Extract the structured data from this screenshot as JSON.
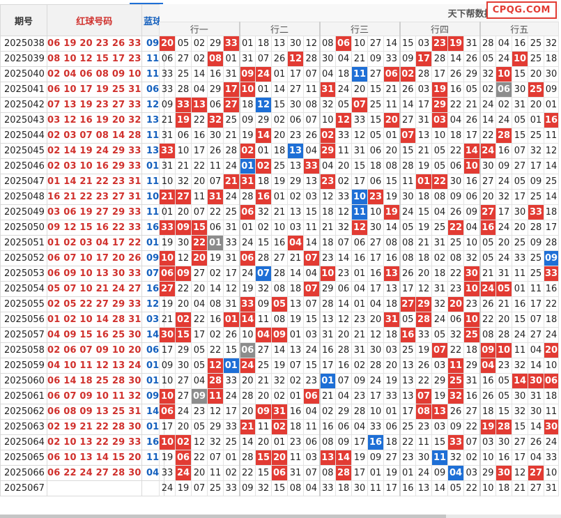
{
  "header": {
    "issue_label": "期号",
    "red_label": "红球号码",
    "blue_label": "蓝球",
    "title": "天下帮数据总表二(行数据)",
    "logo": "CPQG.COM",
    "groups": [
      "行一",
      "行二",
      "行三",
      "行四",
      "行五"
    ]
  },
  "rows": [
    {
      "issue": "2025038",
      "red": "06 19 20 23 26 33",
      "blue": "09",
      "cells": [
        "20",
        "05",
        "02",
        "29",
        "33",
        "01",
        "18",
        "13",
        "30",
        "12",
        "08",
        "06",
        "10",
        "27",
        "14",
        "15",
        "03",
        "23",
        "19",
        "31",
        "28",
        "04",
        "16",
        "25",
        "32"
      ],
      "marks": {
        "0": "r",
        "4": "r",
        "11": "r",
        "17": "r",
        "18": "r"
      }
    },
    {
      "issue": "2025039",
      "red": "08 10 12 15 17 23",
      "blue": "11",
      "cells": [
        "06",
        "27",
        "02",
        "08",
        "01",
        "31",
        "07",
        "26",
        "12",
        "28",
        "30",
        "04",
        "21",
        "09",
        "33",
        "09",
        "17",
        "28",
        "14",
        "26",
        "05",
        "24",
        "10",
        "25",
        "18"
      ],
      "marks": {
        "3": "r",
        "8": "r",
        "16": "r",
        "22": "r"
      }
    },
    {
      "issue": "2025040",
      "red": "02 04 06 08 09 10",
      "blue": "11",
      "cells": [
        "33",
        "25",
        "14",
        "16",
        "31",
        "09",
        "24",
        "01",
        "17",
        "07",
        "04",
        "18",
        "11",
        "27",
        "06",
        "02",
        "28",
        "17",
        "26",
        "29",
        "32",
        "10",
        "15",
        "20",
        "30"
      ],
      "marks": {
        "5": "r",
        "6": "r",
        "12": "b",
        "14": "r",
        "15": "r",
        "21": "r"
      }
    },
    {
      "issue": "2025041",
      "red": "06 10 17 19 25 31",
      "blue": "06",
      "cells": [
        "33",
        "28",
        "04",
        "29",
        "17",
        "10",
        "01",
        "14",
        "27",
        "11",
        "31",
        "24",
        "20",
        "15",
        "21",
        "26",
        "03",
        "19",
        "16",
        "05",
        "02",
        "06",
        "30",
        "25",
        "09"
      ],
      "marks": {
        "4": "r",
        "5": "r",
        "10": "r",
        "17": "r",
        "21": "g",
        "23": "r"
      }
    },
    {
      "issue": "2025042",
      "red": "07 13 19 23 27 33",
      "blue": "12",
      "cells": [
        "09",
        "33",
        "13",
        "06",
        "27",
        "18",
        "12",
        "15",
        "30",
        "08",
        "32",
        "05",
        "07",
        "25",
        "11",
        "14",
        "17",
        "29",
        "22",
        "21",
        "24",
        "02",
        "31",
        "20",
        "01"
      ],
      "marks": {
        "1": "r",
        "2": "r",
        "4": "r",
        "6": "b",
        "12": "r",
        "17": "r"
      }
    },
    {
      "issue": "2025043",
      "red": "03 12 16 19 20 32",
      "blue": "13",
      "cells": [
        "21",
        "19",
        "22",
        "32",
        "25",
        "09",
        "29",
        "02",
        "06",
        "07",
        "10",
        "12",
        "33",
        "15",
        "20",
        "27",
        "31",
        "03",
        "04",
        "26",
        "14",
        "24",
        "05",
        "01",
        "16"
      ],
      "marks": {
        "1": "r",
        "3": "r",
        "11": "r",
        "14": "r",
        "17": "r",
        "24": "r"
      }
    },
    {
      "issue": "2025044",
      "red": "02 03 07 08 14 28",
      "blue": "11",
      "cells": [
        "31",
        "06",
        "16",
        "30",
        "21",
        "19",
        "14",
        "20",
        "23",
        "26",
        "02",
        "33",
        "12",
        "05",
        "01",
        "07",
        "13",
        "10",
        "18",
        "17",
        "22",
        "28",
        "15",
        "25",
        "11"
      ],
      "marks": {
        "6": "r",
        "10": "r",
        "15": "r",
        "21": "r"
      }
    },
    {
      "issue": "2025045",
      "red": "02 14 19 24 29 33",
      "blue": "13",
      "cells": [
        "33",
        "10",
        "17",
        "26",
        "28",
        "02",
        "01",
        "18",
        "13",
        "04",
        "29",
        "11",
        "31",
        "06",
        "20",
        "15",
        "21",
        "05",
        "22",
        "14",
        "24",
        "16",
        "07",
        "32",
        "12"
      ],
      "marks": {
        "0": "r",
        "5": "r",
        "8": "b",
        "10": "r",
        "19": "r",
        "20": "r"
      }
    },
    {
      "issue": "2025046",
      "red": "02 03 10 16 29 33",
      "blue": "01",
      "cells": [
        "31",
        "21",
        "22",
        "11",
        "24",
        "01",
        "02",
        "25",
        "13",
        "33",
        "04",
        "20",
        "15",
        "18",
        "08",
        "28",
        "19",
        "05",
        "06",
        "10",
        "30",
        "09",
        "27",
        "17",
        "14"
      ],
      "marks": {
        "5": "b",
        "6": "r",
        "9": "r",
        "19": "r"
      }
    },
    {
      "issue": "2025047",
      "red": "01 14 21 22 23 31",
      "blue": "11",
      "cells": [
        "10",
        "32",
        "20",
        "07",
        "21",
        "31",
        "18",
        "19",
        "29",
        "13",
        "23",
        "02",
        "17",
        "06",
        "15",
        "11",
        "01",
        "22",
        "30",
        "16",
        "27",
        "24",
        "05",
        "09",
        "25"
      ],
      "marks": {
        "4": "r",
        "5": "r",
        "10": "r",
        "16": "r",
        "17": "r"
      }
    },
    {
      "issue": "2025048",
      "red": "16 21 22 23 27 31",
      "blue": "10",
      "cells": [
        "21",
        "27",
        "11",
        "31",
        "24",
        "28",
        "16",
        "01",
        "02",
        "03",
        "12",
        "33",
        "10",
        "23",
        "19",
        "30",
        "18",
        "08",
        "09",
        "06",
        "20",
        "32",
        "17",
        "25",
        "14"
      ],
      "marks": {
        "0": "r",
        "1": "r",
        "3": "r",
        "6": "r",
        "12": "b",
        "13": "r"
      }
    },
    {
      "issue": "2025049",
      "red": "03 06 19 27 29 33",
      "blue": "11",
      "cells": [
        "01",
        "20",
        "07",
        "22",
        "25",
        "06",
        "32",
        "21",
        "13",
        "15",
        "18",
        "12",
        "11",
        "10",
        "19",
        "24",
        "15",
        "04",
        "26",
        "09",
        "27",
        "17",
        "30",
        "33",
        "18"
      ],
      "marks": {
        "5": "r",
        "12": "b",
        "14": "r",
        "20": "r",
        "23": "r"
      }
    },
    {
      "issue": "2025050",
      "red": "09 12 15 16 22 33",
      "blue": "16",
      "cells": [
        "33",
        "09",
        "15",
        "06",
        "31",
        "01",
        "02",
        "10",
        "03",
        "11",
        "21",
        "32",
        "12",
        "30",
        "14",
        "05",
        "19",
        "25",
        "22",
        "04",
        "16",
        "24",
        "20",
        "28",
        "17"
      ],
      "marks": {
        "0": "r",
        "1": "r",
        "2": "r",
        "12": "r",
        "18": "r",
        "20": "r"
      }
    },
    {
      "issue": "2025051",
      "red": "01 02 03 04 17 22",
      "blue": "01",
      "cells": [
        "19",
        "30",
        "22",
        "01",
        "33",
        "24",
        "15",
        "16",
        "04",
        "14",
        "18",
        "07",
        "06",
        "27",
        "08",
        "08",
        "21",
        "31",
        "25",
        "10",
        "05",
        "20",
        "25",
        "09",
        "28"
      ],
      "marks": {
        "2": "r",
        "3": "g",
        "8": "r"
      }
    },
    {
      "issue": "2025052",
      "red": "06 07 10 17 20 26",
      "blue": "09",
      "cells": [
        "10",
        "12",
        "20",
        "19",
        "31",
        "06",
        "28",
        "27",
        "21",
        "07",
        "23",
        "14",
        "16",
        "17",
        "16",
        "08",
        "18",
        "02",
        "08",
        "32",
        "05",
        "24",
        "33",
        "25",
        "09"
      ],
      "marks": {
        "0": "r",
        "2": "r",
        "5": "r",
        "9": "r",
        "24": "b"
      }
    },
    {
      "issue": "2025053",
      "red": "06 09 10 13 30 33",
      "blue": "07",
      "cells": [
        "06",
        "09",
        "27",
        "02",
        "17",
        "24",
        "07",
        "28",
        "14",
        "04",
        "10",
        "23",
        "01",
        "16",
        "13",
        "26",
        "20",
        "18",
        "22",
        "30",
        "21",
        "31",
        "11",
        "25",
        "33"
      ],
      "marks": {
        "0": "r",
        "1": "r",
        "6": "b",
        "10": "r",
        "14": "r",
        "19": "r",
        "24": "r"
      }
    },
    {
      "issue": "2025054",
      "red": "05 07 10 21 24 27",
      "blue": "16",
      "cells": [
        "27",
        "22",
        "20",
        "14",
        "12",
        "19",
        "32",
        "08",
        "18",
        "07",
        "29",
        "06",
        "04",
        "17",
        "13",
        "17",
        "12",
        "31",
        "23",
        "10",
        "24",
        "05",
        "01",
        "11",
        "16"
      ],
      "marks": {
        "0": "r",
        "9": "r",
        "19": "r",
        "20": "r",
        "21": "r"
      }
    },
    {
      "issue": "2025055",
      "red": "02 05 22 27 29 33",
      "blue": "12",
      "cells": [
        "19",
        "20",
        "04",
        "08",
        "31",
        "33",
        "09",
        "05",
        "13",
        "07",
        "28",
        "14",
        "01",
        "04",
        "18",
        "27",
        "29",
        "32",
        "20",
        "23",
        "26",
        "21",
        "16",
        "17",
        "22"
      ],
      "marks": {
        "5": "r",
        "7": "r",
        "15": "r",
        "16": "r",
        "18": "r"
      }
    },
    {
      "issue": "2025056",
      "red": "01 02 10 14 28 31",
      "blue": "03",
      "cells": [
        "21",
        "02",
        "22",
        "16",
        "01",
        "14",
        "11",
        "08",
        "19",
        "15",
        "13",
        "12",
        "23",
        "20",
        "31",
        "05",
        "28",
        "24",
        "06",
        "10",
        "22",
        "20",
        "15",
        "07",
        "18"
      ],
      "marks": {
        "1": "r",
        "4": "r",
        "5": "r",
        "14": "r",
        "16": "r",
        "19": "r"
      }
    },
    {
      "issue": "2025057",
      "red": "04 09 15 16 25 30",
      "blue": "14",
      "cells": [
        "30",
        "15",
        "17",
        "02",
        "26",
        "10",
        "04",
        "09",
        "01",
        "03",
        "31",
        "20",
        "21",
        "12",
        "18",
        "16",
        "33",
        "05",
        "32",
        "25",
        "08",
        "28",
        "24",
        "27",
        "24"
      ],
      "marks": {
        "0": "r",
        "1": "r",
        "6": "r",
        "7": "r",
        "15": "r",
        "19": "r"
      }
    },
    {
      "issue": "2025058",
      "red": "02 06 07 09 10 20",
      "blue": "06",
      "cells": [
        "17",
        "29",
        "05",
        "22",
        "15",
        "06",
        "27",
        "14",
        "13",
        "24",
        "16",
        "28",
        "31",
        "30",
        "03",
        "25",
        "19",
        "07",
        "22",
        "18",
        "09",
        "10",
        "11",
        "04",
        "20"
      ],
      "marks": {
        "5": "g",
        "17": "r",
        "20": "r",
        "21": "r",
        "24": "r"
      }
    },
    {
      "issue": "2025059",
      "red": "04 10 11 12 13 24",
      "blue": "01",
      "cells": [
        "09",
        "30",
        "05",
        "12",
        "01",
        "24",
        "25",
        "19",
        "07",
        "15",
        "17",
        "16",
        "02",
        "28",
        "20",
        "13",
        "26",
        "03",
        "11",
        "29",
        "04",
        "23",
        "32",
        "14",
        "10"
      ],
      "marks": {
        "3": "r",
        "4": "b",
        "5": "r",
        "18": "r",
        "20": "r"
      }
    },
    {
      "issue": "2025060",
      "red": "06 14 18 25 28 30",
      "blue": "01",
      "cells": [
        "10",
        "27",
        "04",
        "28",
        "33",
        "20",
        "21",
        "32",
        "02",
        "23",
        "01",
        "07",
        "09",
        "24",
        "19",
        "13",
        "22",
        "29",
        "25",
        "31",
        "16",
        "05",
        "14",
        "30",
        "06"
      ],
      "marks": {
        "3": "r",
        "10": "b",
        "18": "r",
        "22": "r",
        "23": "r",
        "24": "r"
      }
    },
    {
      "issue": "2025061",
      "red": "06 07 09 10 11 32",
      "blue": "09",
      "cells": [
        "10",
        "27",
        "09",
        "11",
        "24",
        "28",
        "20",
        "02",
        "01",
        "06",
        "21",
        "04",
        "23",
        "17",
        "33",
        "13",
        "07",
        "19",
        "32",
        "16",
        "26",
        "05",
        "30",
        "31",
        "18"
      ],
      "marks": {
        "0": "r",
        "2": "g",
        "3": "r",
        "9": "r",
        "16": "r",
        "18": "r"
      }
    },
    {
      "issue": "2025062",
      "red": "06 08 09 13 25 31",
      "blue": "14",
      "cells": [
        "06",
        "24",
        "23",
        "12",
        "17",
        "20",
        "09",
        "31",
        "16",
        "04",
        "02",
        "29",
        "28",
        "10",
        "01",
        "17",
        "08",
        "13",
        "26",
        "27",
        "18",
        "15",
        "32",
        "30",
        "11"
      ],
      "marks": {
        "0": "r",
        "6": "r",
        "7": "r",
        "16": "r",
        "17": "r"
      }
    },
    {
      "issue": "2025063",
      "red": "02 19 21 22 28 30",
      "blue": "01",
      "cells": [
        "17",
        "20",
        "05",
        "29",
        "33",
        "21",
        "11",
        "02",
        "18",
        "11",
        "16",
        "06",
        "04",
        "33",
        "06",
        "25",
        "23",
        "03",
        "09",
        "22",
        "19",
        "28",
        "15",
        "14",
        "30"
      ],
      "marks": {
        "5": "r",
        "7": "r",
        "20": "r",
        "21": "r",
        "24": "r"
      }
    },
    {
      "issue": "2025064",
      "red": "02 10 13 22 29 33",
      "blue": "16",
      "cells": [
        "10",
        "02",
        "12",
        "32",
        "25",
        "14",
        "20",
        "01",
        "23",
        "06",
        "08",
        "09",
        "17",
        "16",
        "18",
        "22",
        "11",
        "15",
        "33",
        "07",
        "03",
        "30",
        "27",
        "26",
        "24"
      ],
      "marks": {
        "0": "r",
        "1": "r",
        "13": "b",
        "18": "r"
      }
    },
    {
      "issue": "2025065",
      "red": "06 10 13 14 15 20",
      "blue": "11",
      "cells": [
        "19",
        "06",
        "22",
        "07",
        "01",
        "28",
        "15",
        "20",
        "11",
        "03",
        "13",
        "14",
        "19",
        "09",
        "27",
        "23",
        "30",
        "11",
        "32",
        "02",
        "10",
        "16",
        "17",
        "04",
        "33"
      ],
      "marks": {
        "1": "r",
        "6": "r",
        "7": "r",
        "10": "r",
        "11": "r",
        "17": "b"
      }
    },
    {
      "issue": "2025066",
      "red": "06 22 24 27 28 30",
      "blue": "04",
      "cells": [
        "33",
        "24",
        "20",
        "11",
        "02",
        "22",
        "15",
        "06",
        "31",
        "07",
        "08",
        "28",
        "17",
        "01",
        "19",
        "01",
        "24",
        "09",
        "04",
        "03",
        "29",
        "30",
        "12",
        "27",
        "10"
      ],
      "marks": {
        "1": "r",
        "7": "r",
        "11": "r",
        "18": "b",
        "21": "r",
        "23": "r"
      }
    },
    {
      "issue": "2025067",
      "red": "",
      "blue": "",
      "cells": [
        "24",
        "19",
        "07",
        "25",
        "33",
        "09",
        "32",
        "15",
        "08",
        "04",
        "33",
        "18",
        "30",
        "11",
        "17",
        "16",
        "13",
        "14",
        "05",
        "22",
        "10",
        "18",
        "21",
        "27",
        "31"
      ],
      "marks": {}
    }
  ]
}
